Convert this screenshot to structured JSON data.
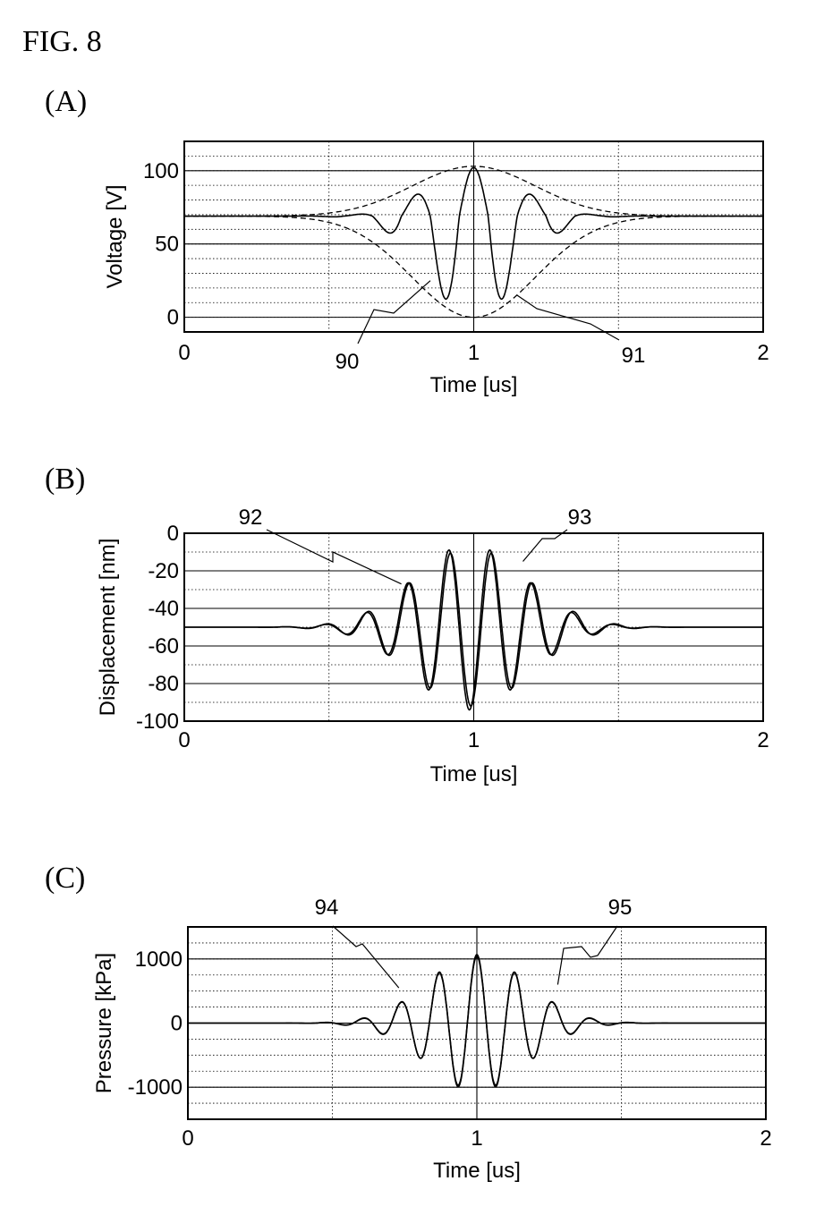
{
  "figure_title": "FIG. 8",
  "chart_data": [
    {
      "panel": "(A)",
      "type": "line",
      "xlabel": "Time [us]",
      "ylabel": "Voltage [V]",
      "xlim": [
        0,
        2
      ],
      "ylim": [
        -10,
        120
      ],
      "x_ticks": [
        "0",
        "1",
        "2"
      ],
      "y_ticks": [
        {
          "value": 0,
          "label": "0"
        },
        {
          "value": 50,
          "label": "50"
        },
        {
          "value": 100,
          "label": "100"
        }
      ],
      "grid": true,
      "series": [
        {
          "role": "drive-voltage",
          "style": "solid",
          "baseline": 69,
          "amplitude": 69,
          "center": 1.0,
          "width": 0.22,
          "frequency": 5.0
        },
        {
          "role": "upper-envelope",
          "style": "dashed",
          "baseline": 69,
          "amplitude": 34,
          "center": 1.0,
          "width": 0.3
        },
        {
          "role": "lower-envelope",
          "style": "dashed",
          "baseline": 69,
          "amplitude": -69,
          "center": 1.0,
          "width": 0.3
        }
      ],
      "annotations": [
        {
          "label": "90",
          "target": [
            0.85,
            25
          ]
        },
        {
          "label": "91",
          "target": [
            1.15,
            15
          ]
        }
      ]
    },
    {
      "panel": "(B)",
      "type": "line",
      "xlabel": "Time [us]",
      "ylabel": "Displacement [nm]",
      "xlim": [
        0,
        2
      ],
      "ylim": [
        -100,
        0
      ],
      "x_ticks": [
        "0",
        "1",
        "2"
      ],
      "y_ticks": [
        {
          "value": 0,
          "label": "0"
        },
        {
          "value": -20,
          "label": "-20"
        },
        {
          "value": -40,
          "label": "-40"
        },
        {
          "value": -60,
          "label": "-60"
        },
        {
          "value": -80,
          "label": "-80"
        },
        {
          "value": -100,
          "label": "-100"
        }
      ],
      "grid": true,
      "series": [
        {
          "role": "displacement-1",
          "baseline": -50,
          "amplitude": 44,
          "center": 0.985,
          "width": 0.27,
          "frequency": 7.0
        },
        {
          "role": "displacement-2",
          "baseline": -50,
          "amplitude": 42,
          "center": 0.99,
          "width": 0.28,
          "frequency": 7.0
        }
      ],
      "annotations": [
        {
          "label": "92",
          "target": [
            0.75,
            -27
          ]
        },
        {
          "label": "93",
          "target": [
            1.17,
            -15
          ]
        }
      ]
    },
    {
      "panel": "(C)",
      "type": "line",
      "xlabel": "Time [us]",
      "ylabel": "Pressure  [kPa]",
      "xlim": [
        0,
        2
      ],
      "ylim": [
        -1500,
        1500
      ],
      "x_ticks": [
        "0",
        "1",
        "2"
      ],
      "y_ticks": [
        {
          "value": 1000,
          "label": "1000"
        },
        {
          "value": 0,
          "label": "0"
        },
        {
          "value": -1000,
          "label": "-1000"
        }
      ],
      "grid": true,
      "series": [
        {
          "role": "pressure-1",
          "baseline": 0,
          "amplitude": 1070,
          "center": 1.0,
          "width": 0.24,
          "frequency": 7.6
        },
        {
          "role": "pressure-2",
          "baseline": 0,
          "amplitude": 1040,
          "center": 1.0,
          "width": 0.245,
          "frequency": 7.6
        }
      ],
      "annotations": [
        {
          "label": "94",
          "target": [
            0.73,
            550
          ]
        },
        {
          "label": "95",
          "target": [
            1.28,
            600
          ]
        }
      ]
    }
  ]
}
